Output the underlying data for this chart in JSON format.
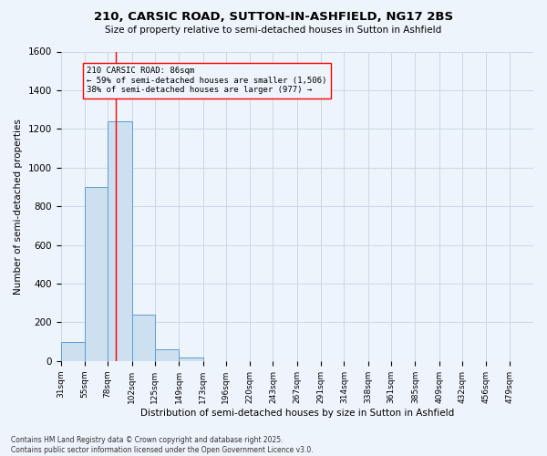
{
  "title1": "210, CARSIC ROAD, SUTTON-IN-ASHFIELD, NG17 2BS",
  "title2": "Size of property relative to semi-detached houses in Sutton in Ashfield",
  "xlabel": "Distribution of semi-detached houses by size in Sutton in Ashfield",
  "ylabel": "Number of semi-detached properties",
  "footer1": "Contains HM Land Registry data © Crown copyright and database right 2025.",
  "footer2": "Contains public sector information licensed under the Open Government Licence v3.0.",
  "annotation_title": "210 CARSIC ROAD: 86sqm",
  "annotation_line2": "← 59% of semi-detached houses are smaller (1,506)",
  "annotation_line3": "38% of semi-detached houses are larger (977) →",
  "bar_edges": [
    31,
    55,
    78,
    102,
    125,
    149,
    173,
    196,
    220,
    243,
    267,
    291,
    314,
    338,
    361,
    385,
    409,
    432,
    456,
    479,
    503
  ],
  "bar_heights": [
    100,
    900,
    1240,
    240,
    60,
    20,
    0,
    0,
    0,
    0,
    0,
    0,
    0,
    0,
    0,
    0,
    0,
    0,
    0,
    0
  ],
  "bar_color": "#cce0f0",
  "bar_edge_color": "#5b9bd5",
  "grid_color": "#c8d8e8",
  "bg_color": "#eef4fb",
  "red_line_x": 86,
  "ylim": [
    0,
    1600
  ],
  "yticks": [
    0,
    200,
    400,
    600,
    800,
    1000,
    1200,
    1400,
    1600
  ]
}
